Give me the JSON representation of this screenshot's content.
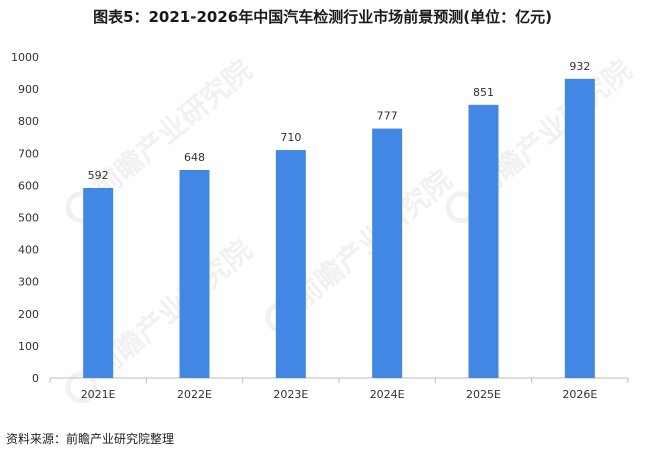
{
  "title": "图表5：2021-2026年中国汽车检测行业市场前景预测(单位：亿元)",
  "source": "资料来源：前瞻产业研究院整理",
  "watermark": "前瞻产业研究院",
  "colors": {
    "bar": "#4287e3",
    "axis": "#bfbfbf",
    "text": "#333333"
  },
  "chart_data": {
    "type": "bar",
    "title": "图表5：2021-2026年中国汽车检测行业市场前景预测(单位：亿元)",
    "categories": [
      "2021E",
      "2022E",
      "2023E",
      "2024E",
      "2025E",
      "2026E"
    ],
    "values": [
      592,
      648,
      710,
      777,
      851,
      932
    ],
    "ylim": [
      0,
      1000
    ],
    "yticks": [
      0,
      100,
      200,
      300,
      400,
      500,
      600,
      700,
      800,
      900,
      1000
    ],
    "xlabel": "",
    "ylabel": "",
    "grid": false,
    "legend": "none"
  }
}
